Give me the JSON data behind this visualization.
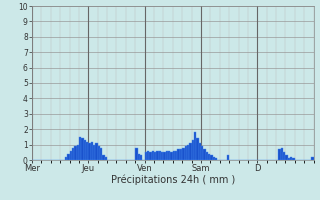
{
  "title": "Précipitations 24h ( mm )",
  "ylabel_ticks": [
    0,
    1,
    2,
    3,
    4,
    5,
    6,
    7,
    8,
    9,
    10
  ],
  "ylim": [
    0,
    10
  ],
  "background_color": "#cce8e8",
  "plot_background": "#cce8e8",
  "bar_color": "#1a52cc",
  "bar_edge_color": "#4488ee",
  "grid_major_color": "#999999",
  "grid_minor_color": "#bbbbbb",
  "day_line_color": "#666666",
  "tick_label_color": "#333333",
  "xlabel": "Précipitations 24h ( mm )",
  "day_labels": [
    "Mer",
    "Jeu",
    "Ven",
    "Sam",
    "D"
  ],
  "day_positions": [
    0,
    24,
    48,
    72,
    96
  ],
  "n_bars": 120,
  "values": [
    0.0,
    0.0,
    0.0,
    0.0,
    0.0,
    0.0,
    0.0,
    0.0,
    0.0,
    0.0,
    0.0,
    0.0,
    0.0,
    0.0,
    0.2,
    0.4,
    0.6,
    0.8,
    0.9,
    1.0,
    1.5,
    1.4,
    1.3,
    1.2,
    1.1,
    1.2,
    1.0,
    1.1,
    0.9,
    0.8,
    0.3,
    0.2,
    0.0,
    0.0,
    0.0,
    0.0,
    0.0,
    0.0,
    0.0,
    0.0,
    0.0,
    0.0,
    0.0,
    0.0,
    0.8,
    0.4,
    0.3,
    0.0,
    0.5,
    0.6,
    0.5,
    0.6,
    0.5,
    0.6,
    0.6,
    0.5,
    0.5,
    0.6,
    0.6,
    0.5,
    0.6,
    0.6,
    0.7,
    0.7,
    0.8,
    0.9,
    1.0,
    1.1,
    1.3,
    1.8,
    1.4,
    1.1,
    0.9,
    0.7,
    0.5,
    0.4,
    0.3,
    0.2,
    0.1,
    0.0,
    0.0,
    0.0,
    0.0,
    0.3,
    0.0,
    0.0,
    0.0,
    0.0,
    0.0,
    0.0,
    0.0,
    0.0,
    0.0,
    0.0,
    0.0,
    0.0,
    0.0,
    0.0,
    0.0,
    0.0,
    0.0,
    0.0,
    0.0,
    0.0,
    0.0,
    0.7,
    0.8,
    0.5,
    0.3,
    0.1,
    0.2,
    0.1,
    0.0,
    0.0,
    0.0,
    0.0,
    0.0,
    0.0,
    0.0,
    0.2
  ]
}
